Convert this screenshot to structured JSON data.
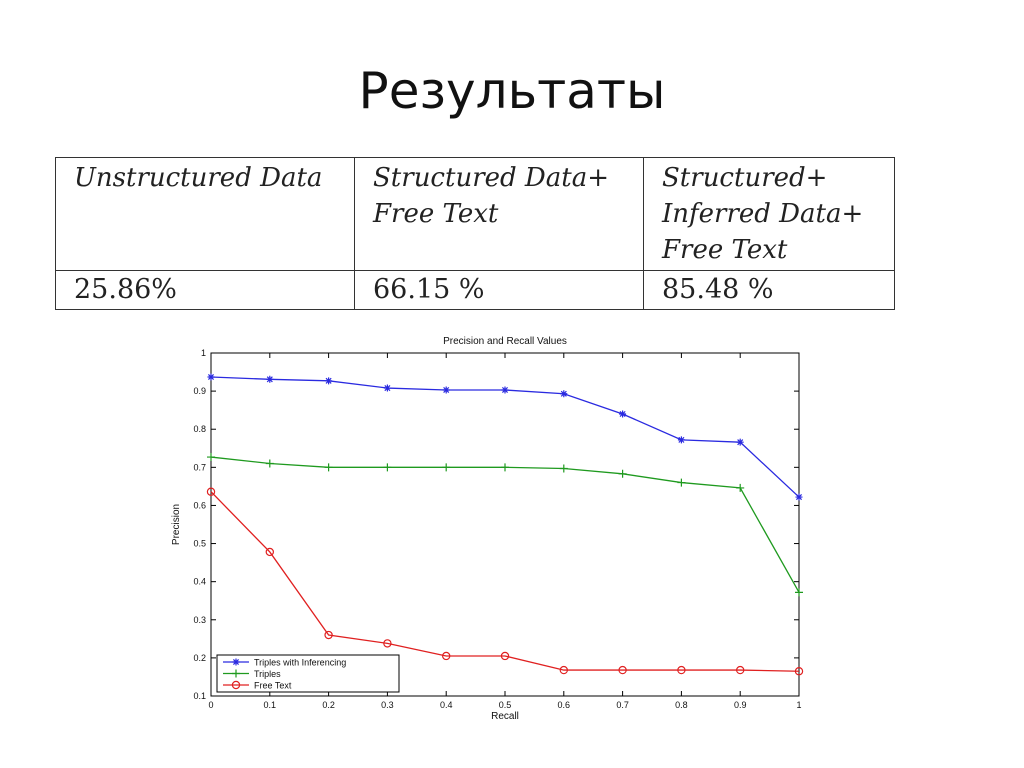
{
  "slide": {
    "title": "Результаты"
  },
  "table": {
    "headers": [
      [
        "Unstructured Data"
      ],
      [
        "Structured Data+",
        "Free Text"
      ],
      [
        "Structured+",
        "Inferred Data+",
        "Free Text"
      ]
    ],
    "values": [
      "25.86%",
      "66.15 %",
      "85.48 %"
    ]
  },
  "chart_data": {
    "type": "line",
    "title": "Precision and Recall Values",
    "xlabel": "Recall",
    "ylabel": "Precision",
    "xlim": [
      0,
      1
    ],
    "ylim": [
      0.1,
      1
    ],
    "xticks": [
      "0",
      "0.1",
      "0.2",
      "0.3",
      "0.4",
      "0.5",
      "0.6",
      "0.7",
      "0.8",
      "0.9",
      "1"
    ],
    "yticks": [
      "0.1",
      "0.2",
      "0.3",
      "0.4",
      "0.5",
      "0.6",
      "0.7",
      "0.8",
      "0.9",
      "1"
    ],
    "x": [
      0,
      0.1,
      0.2,
      0.3,
      0.4,
      0.5,
      0.6,
      0.7,
      0.8,
      0.9,
      1
    ],
    "grid": false,
    "legend": "bottom-left",
    "series": [
      {
        "name": "Triples with Inferencing",
        "color": "#2a2ae0",
        "marker": "star",
        "values": [
          0.937,
          0.931,
          0.927,
          0.908,
          0.903,
          0.903,
          0.893,
          0.84,
          0.772,
          0.766,
          0.622
        ]
      },
      {
        "name": "Triples",
        "color": "#1f9a1f",
        "marker": "plus",
        "values": [
          0.727,
          0.71,
          0.7,
          0.7,
          0.7,
          0.7,
          0.697,
          0.683,
          0.66,
          0.646,
          0.372
        ]
      },
      {
        "name": "Free Text",
        "color": "#e02020",
        "marker": "circle",
        "values": [
          0.636,
          0.478,
          0.26,
          0.238,
          0.205,
          0.205,
          0.168,
          0.168,
          0.168,
          0.168,
          0.165
        ]
      }
    ]
  }
}
